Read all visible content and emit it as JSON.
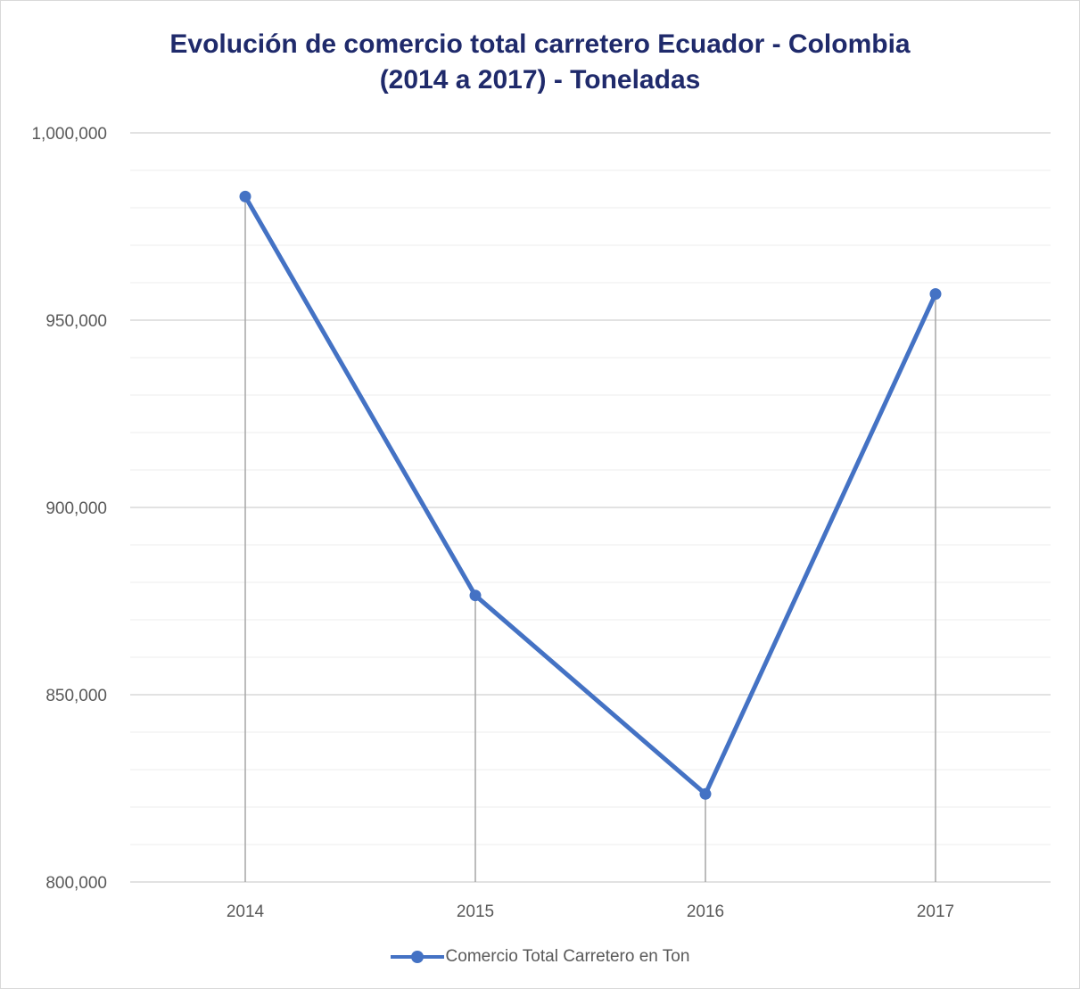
{
  "chart_data": {
    "type": "line",
    "title_lines": [
      "Evolución de comercio total carretero Ecuador - Colombia",
      "(2014 a 2017) - Toneladas"
    ],
    "categories": [
      "2014",
      "2015",
      "2016",
      "2017"
    ],
    "series": [
      {
        "name": "Comercio Total Carretero en Ton",
        "values": [
          983000,
          876500,
          823500,
          957000
        ],
        "color": "#4472c4"
      }
    ],
    "ylim": [
      800000,
      1000000
    ],
    "yticks": [
      800000,
      850000,
      900000,
      950000,
      1000000
    ],
    "ytick_labels": [
      "800,000",
      "850,000",
      "900,000",
      "950,000",
      "1,000,000"
    ],
    "minor_step": 10000,
    "grid": true,
    "drop_lines": true,
    "legend_position": "bottom",
    "colors": {
      "title": "#1f2a6b",
      "major_grid": "#d9d9d9",
      "minor_grid": "#eeeeee",
      "drop_line": "#a6a6a6",
      "axis_text": "#595959"
    }
  }
}
